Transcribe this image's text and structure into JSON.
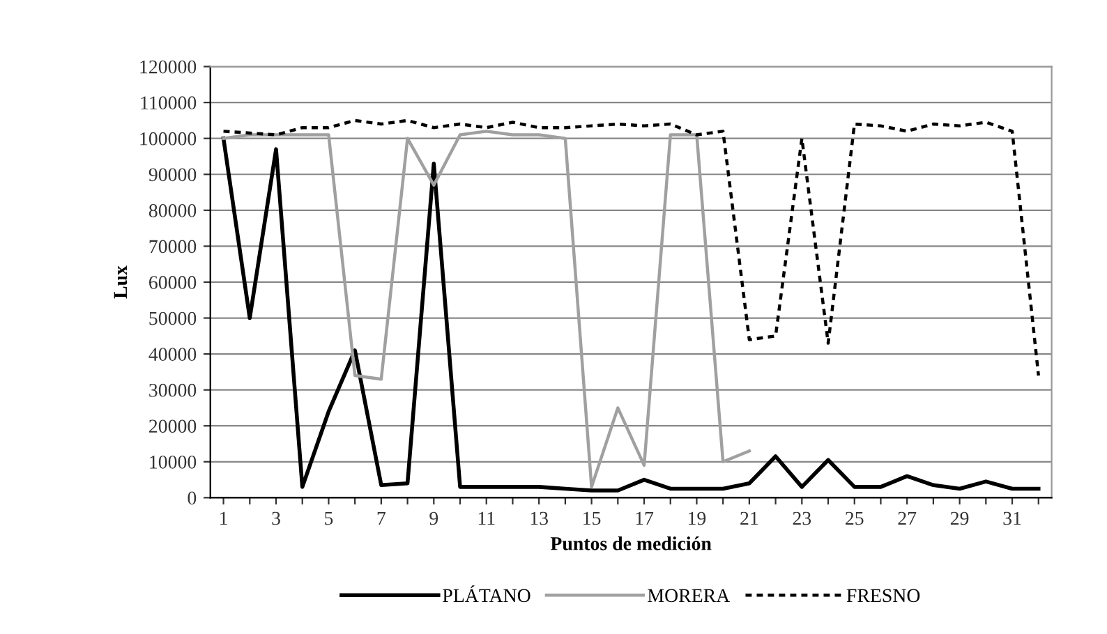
{
  "chart_data": {
    "type": "line",
    "xlabel": "Puntos de medición",
    "ylabel": "Lux",
    "categories": [
      "1",
      null,
      "3",
      null,
      "5",
      null,
      "7",
      null,
      "9",
      null,
      "11",
      null,
      "13",
      null,
      "15",
      null,
      "17",
      null,
      "19",
      null,
      "21",
      null,
      "23",
      null,
      "25",
      null,
      "27",
      null,
      "29",
      null,
      "31",
      null
    ],
    "series": [
      {
        "name": "PLÁTANO",
        "color": "#000000",
        "line_style": "solid",
        "values": [
          100000,
          50000,
          97000,
          3000,
          24000,
          41000,
          3500,
          4000,
          93000,
          3000,
          3000,
          3000,
          3000,
          2500,
          2000,
          2000,
          5000,
          2500,
          2500,
          2500,
          4000,
          11500,
          3000,
          10500,
          3000,
          3000,
          6000,
          3500,
          2500,
          4500,
          2500,
          2500
        ]
      },
      {
        "name": "MORERA",
        "color": "#a0a0a0",
        "line_style": "solid",
        "values": [
          100000,
          101000,
          101000,
          101000,
          101000,
          34000,
          33000,
          100000,
          87000,
          101000,
          102000,
          101000,
          101000,
          100000,
          3000,
          25000,
          9000,
          101000,
          101000,
          10000,
          13000,
          null,
          null,
          null,
          null,
          null,
          null,
          null,
          null,
          null,
          null,
          null
        ]
      },
      {
        "name": "FRESNO",
        "color": "#000000",
        "line_style": "dashed",
        "values": [
          102000,
          101500,
          101000,
          103000,
          103000,
          105000,
          104000,
          105000,
          103000,
          104000,
          103000,
          104500,
          103000,
          103000,
          103500,
          104000,
          103500,
          104000,
          101000,
          102000,
          44000,
          45000,
          100000,
          43000,
          104000,
          103500,
          102000,
          104000,
          103500,
          104500,
          102000,
          34000
        ]
      }
    ],
    "ylim": [
      0,
      120000
    ],
    "yticks": [
      0,
      10000,
      20000,
      30000,
      40000,
      50000,
      60000,
      70000,
      80000,
      90000,
      100000,
      110000,
      120000
    ],
    "grid": "y",
    "legend": "bottom",
    "marker": "none"
  }
}
